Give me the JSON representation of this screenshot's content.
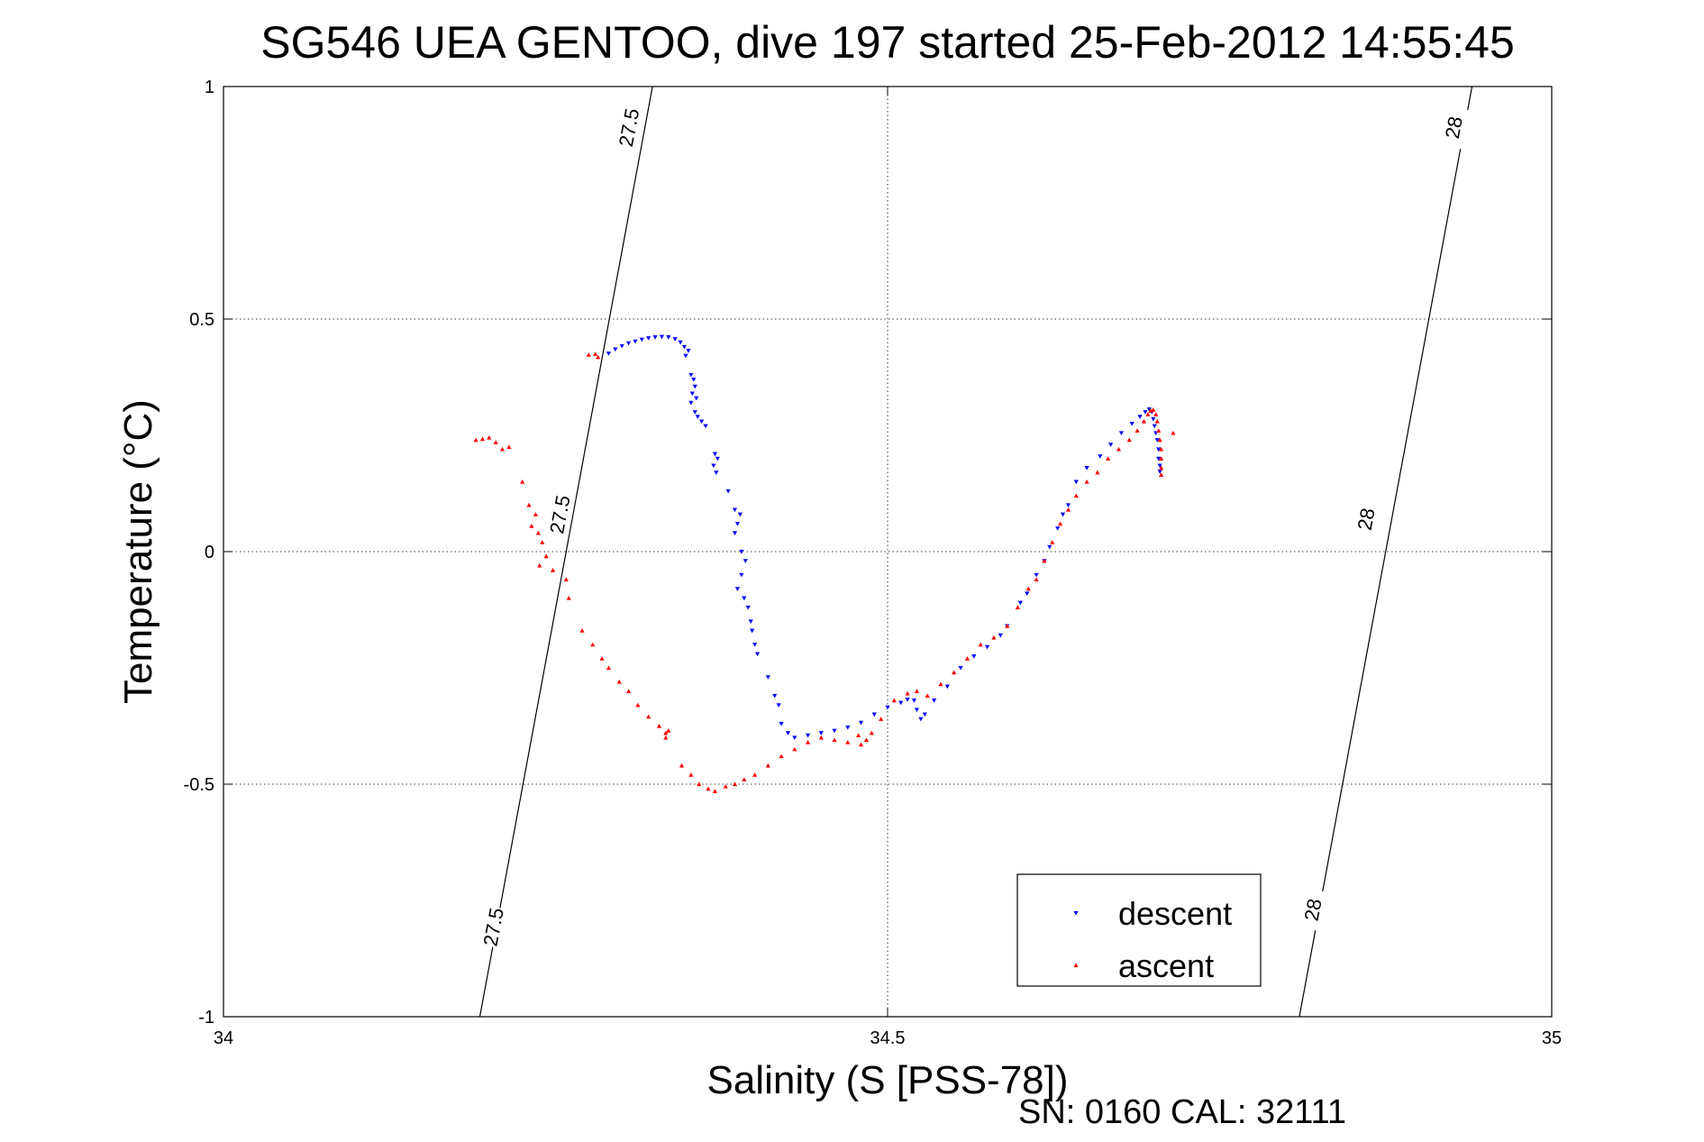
{
  "chart_data": {
    "type": "scatter",
    "title": "SG546 UEA GENTOO, dive 197 started 25-Feb-2012 14:55:45",
    "xlabel": "Salinity (S [PSS-78])",
    "ylabel": "Temperature (°C)",
    "xlim": [
      34,
      35
    ],
    "ylim": [
      -1,
      1
    ],
    "x_ticks": [
      34,
      34.5,
      35
    ],
    "x_tick_labels": [
      "34",
      "34.5",
      "35"
    ],
    "y_ticks": [
      -1,
      -0.5,
      0,
      0.5,
      1
    ],
    "y_tick_labels": [
      "-1",
      "-0.5",
      "0",
      "0.5",
      "1"
    ],
    "grid": true,
    "legend": "bottom-right",
    "footer": "SN: 0160  CAL: 32111",
    "series": [
      {
        "name": "descent",
        "marker": "triangle-down",
        "color": "#0000ff",
        "points": [
          [
            34.29,
            0.426
          ],
          [
            34.295,
            0.435
          ],
          [
            34.3,
            0.442
          ],
          [
            34.305,
            0.448
          ],
          [
            34.31,
            0.452
          ],
          [
            34.315,
            0.456
          ],
          [
            34.32,
            0.459
          ],
          [
            34.325,
            0.461
          ],
          [
            34.33,
            0.462
          ],
          [
            34.335,
            0.461
          ],
          [
            34.34,
            0.457
          ],
          [
            34.344,
            0.45
          ],
          [
            34.347,
            0.44
          ],
          [
            34.35,
            0.432
          ],
          [
            34.348,
            0.421
          ],
          [
            34.352,
            0.38
          ],
          [
            34.354,
            0.37
          ],
          [
            34.355,
            0.355
          ],
          [
            34.353,
            0.34
          ],
          [
            34.356,
            0.33
          ],
          [
            34.352,
            0.32
          ],
          [
            34.355,
            0.3
          ],
          [
            34.357,
            0.29
          ],
          [
            34.36,
            0.28
          ],
          [
            34.363,
            0.27
          ],
          [
            34.37,
            0.21
          ],
          [
            34.372,
            0.2
          ],
          [
            34.369,
            0.185
          ],
          [
            34.371,
            0.17
          ],
          [
            34.38,
            0.13
          ],
          [
            34.385,
            0.09
          ],
          [
            34.389,
            0.08
          ],
          [
            34.387,
            0.06
          ],
          [
            34.385,
            0.04
          ],
          [
            34.39,
            0.0
          ],
          [
            34.393,
            -0.02
          ],
          [
            34.39,
            -0.05
          ],
          [
            34.387,
            -0.08
          ],
          [
            34.392,
            -0.1
          ],
          [
            34.395,
            -0.12
          ],
          [
            34.397,
            -0.15
          ],
          [
            34.398,
            -0.17
          ],
          [
            34.4,
            -0.2
          ],
          [
            34.402,
            -0.22
          ],
          [
            34.41,
            -0.27
          ],
          [
            34.415,
            -0.31
          ],
          [
            34.418,
            -0.33
          ],
          [
            34.42,
            -0.37
          ],
          [
            34.425,
            -0.39
          ],
          [
            34.43,
            -0.4
          ],
          [
            34.44,
            -0.395
          ],
          [
            34.45,
            -0.39
          ],
          [
            34.46,
            -0.385
          ],
          [
            34.47,
            -0.378
          ],
          [
            34.48,
            -0.368
          ],
          [
            34.49,
            -0.35
          ],
          [
            34.5,
            -0.335
          ],
          [
            34.51,
            -0.325
          ],
          [
            34.515,
            -0.318
          ],
          [
            34.52,
            -0.32
          ],
          [
            34.522,
            -0.34
          ],
          [
            34.525,
            -0.36
          ],
          [
            34.528,
            -0.35
          ],
          [
            34.535,
            -0.32
          ],
          [
            34.545,
            -0.29
          ],
          [
            34.555,
            -0.25
          ],
          [
            34.565,
            -0.225
          ],
          [
            34.575,
            -0.205
          ],
          [
            34.585,
            -0.18
          ],
          [
            34.59,
            -0.16
          ],
          [
            34.6,
            -0.11
          ],
          [
            34.605,
            -0.09
          ],
          [
            34.612,
            -0.05
          ],
          [
            34.618,
            -0.02
          ],
          [
            34.622,
            0.01
          ],
          [
            34.628,
            0.05
          ],
          [
            34.632,
            0.08
          ],
          [
            34.636,
            0.1
          ],
          [
            34.642,
            0.15
          ],
          [
            34.65,
            0.18
          ],
          [
            34.66,
            0.205
          ],
          [
            34.668,
            0.23
          ],
          [
            34.676,
            0.255
          ],
          [
            34.684,
            0.275
          ],
          [
            34.69,
            0.29
          ],
          [
            34.694,
            0.3
          ],
          [
            34.697,
            0.306
          ],
          [
            34.699,
            0.3
          ],
          [
            34.7,
            0.285
          ],
          [
            34.701,
            0.27
          ],
          [
            34.702,
            0.255
          ],
          [
            34.703,
            0.24
          ],
          [
            34.704,
            0.22
          ],
          [
            34.704,
            0.2
          ],
          [
            34.705,
            0.185
          ],
          [
            34.705,
            0.172
          ]
        ]
      },
      {
        "name": "ascent",
        "marker": "triangle-up",
        "color": "#ff0000",
        "points": [
          [
            34.19,
            0.24
          ],
          [
            34.195,
            0.242
          ],
          [
            34.2,
            0.245
          ],
          [
            34.205,
            0.235
          ],
          [
            34.21,
            0.22
          ],
          [
            34.215,
            0.225
          ],
          [
            34.225,
            0.15
          ],
          [
            34.23,
            0.1
          ],
          [
            34.235,
            0.08
          ],
          [
            34.232,
            0.055
          ],
          [
            34.237,
            0.04
          ],
          [
            34.24,
            0.02
          ],
          [
            34.243,
            -0.01
          ],
          [
            34.238,
            -0.03
          ],
          [
            34.248,
            -0.04
          ],
          [
            34.258,
            -0.06
          ],
          [
            34.26,
            -0.1
          ],
          [
            34.27,
            -0.17
          ],
          [
            34.278,
            -0.2
          ],
          [
            34.285,
            -0.23
          ],
          [
            34.29,
            -0.25
          ],
          [
            34.298,
            -0.28
          ],
          [
            34.305,
            -0.3
          ],
          [
            34.312,
            -0.33
          ],
          [
            34.32,
            -0.355
          ],
          [
            34.328,
            -0.375
          ],
          [
            34.333,
            -0.39
          ],
          [
            34.333,
            -0.4
          ],
          [
            34.335,
            -0.385
          ],
          [
            34.345,
            -0.46
          ],
          [
            34.352,
            -0.48
          ],
          [
            34.358,
            -0.5
          ],
          [
            34.365,
            -0.51
          ],
          [
            34.37,
            -0.515
          ],
          [
            34.378,
            -0.505
          ],
          [
            34.385,
            -0.5
          ],
          [
            34.392,
            -0.49
          ],
          [
            34.4,
            -0.48
          ],
          [
            34.41,
            -0.46
          ],
          [
            34.42,
            -0.44
          ],
          [
            34.43,
            -0.425
          ],
          [
            34.44,
            -0.41
          ],
          [
            34.45,
            -0.4
          ],
          [
            34.46,
            -0.405
          ],
          [
            34.47,
            -0.41
          ],
          [
            34.478,
            -0.395
          ],
          [
            34.48,
            -0.415
          ],
          [
            34.484,
            -0.405
          ],
          [
            34.488,
            -0.39
          ],
          [
            34.495,
            -0.36
          ],
          [
            34.505,
            -0.32
          ],
          [
            34.515,
            -0.305
          ],
          [
            34.522,
            -0.3
          ],
          [
            34.53,
            -0.31
          ],
          [
            34.54,
            -0.285
          ],
          [
            34.55,
            -0.26
          ],
          [
            34.56,
            -0.23
          ],
          [
            34.57,
            -0.2
          ],
          [
            34.58,
            -0.185
          ],
          [
            34.59,
            -0.16
          ],
          [
            34.598,
            -0.12
          ],
          [
            34.606,
            -0.08
          ],
          [
            34.612,
            -0.06
          ],
          [
            34.618,
            -0.02
          ],
          [
            34.624,
            0.02
          ],
          [
            34.63,
            0.06
          ],
          [
            34.636,
            0.09
          ],
          [
            34.642,
            0.12
          ],
          [
            34.65,
            0.15
          ],
          [
            34.658,
            0.17
          ],
          [
            34.666,
            0.2
          ],
          [
            34.674,
            0.22
          ],
          [
            34.682,
            0.24
          ],
          [
            34.688,
            0.26
          ],
          [
            34.693,
            0.28
          ],
          [
            34.696,
            0.295
          ],
          [
            34.698,
            0.303
          ],
          [
            34.7,
            0.305
          ],
          [
            34.702,
            0.295
          ],
          [
            34.703,
            0.28
          ],
          [
            34.704,
            0.26
          ],
          [
            34.705,
            0.24
          ],
          [
            34.706,
            0.22
          ],
          [
            34.706,
            0.2
          ],
          [
            34.706,
            0.18
          ],
          [
            34.706,
            0.165
          ],
          [
            34.715,
            0.255
          ],
          [
            34.282,
            0.418
          ],
          [
            34.28,
            0.425
          ],
          [
            34.275,
            0.423
          ]
        ]
      }
    ],
    "contours": [
      {
        "label": "27.5",
        "line": [
          [
            34.193,
            -1.0
          ],
          [
            34.323,
            1.0
          ]
        ],
        "label_positions": [
          [
            34.305,
            0.912
          ],
          [
            34.253,
            0.08
          ],
          [
            34.203,
            -0.807
          ]
        ]
      },
      {
        "label": "28",
        "line": [
          [
            34.81,
            -1.0
          ],
          [
            34.94,
            1.0
          ]
        ],
        "label_positions": [
          [
            34.926,
            0.912
          ],
          [
            34.86,
            0.07
          ],
          [
            34.82,
            -0.77
          ]
        ]
      }
    ]
  }
}
